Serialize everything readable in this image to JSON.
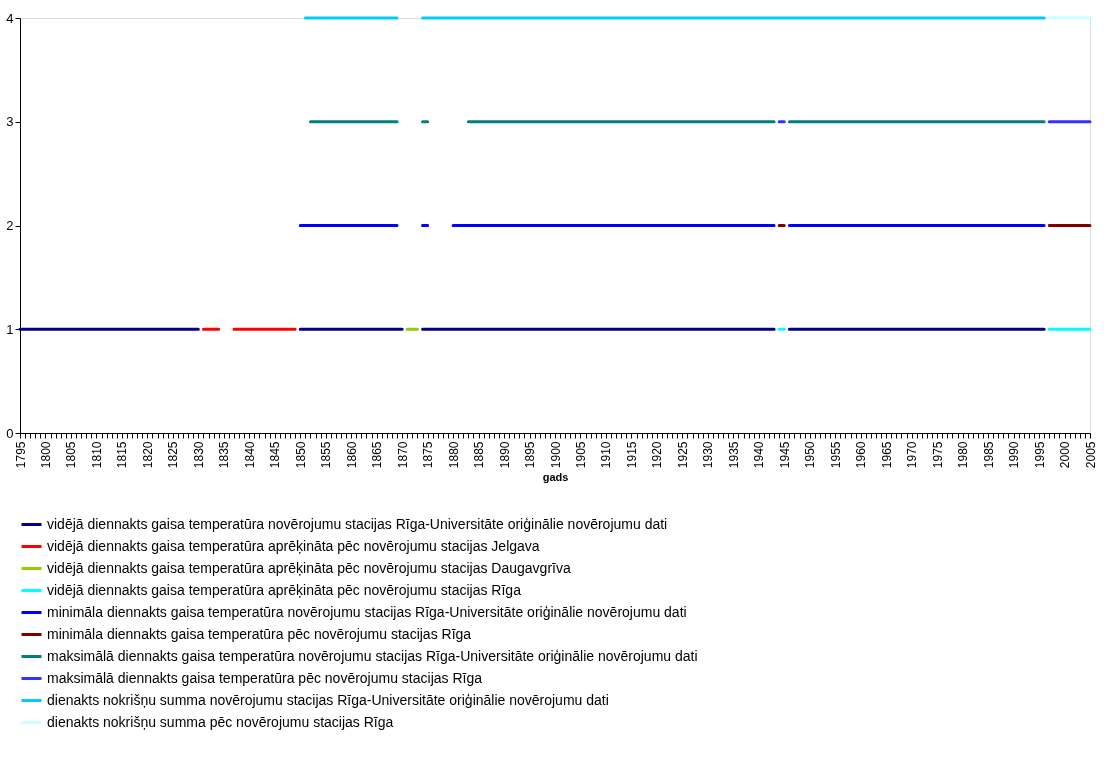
{
  "chart_data": {
    "type": "line",
    "xlabel": "gads",
    "xlim": [
      1795,
      2005
    ],
    "ylim": [
      0,
      4
    ],
    "yticks": [
      0,
      1,
      2,
      3,
      4
    ],
    "grid": false,
    "legend": "bottom",
    "xticks": [
      1795,
      {
        "value": 1796,
        "label": null
      },
      {
        "value": 1797,
        "label": null
      },
      {
        "value": 1798,
        "label": null
      },
      {
        "value": 1799,
        "label": null
      },
      1800,
      {
        "value": 1801,
        "label": null
      },
      {
        "value": 1802,
        "label": null
      },
      {
        "value": 1803,
        "label": null
      },
      {
        "value": 1804,
        "label": null
      },
      1805,
      {
        "value": 1806,
        "label": null
      },
      {
        "value": 1807,
        "label": null
      },
      {
        "value": 1808,
        "label": null
      },
      {
        "value": 1809,
        "label": null
      },
      1810,
      {
        "value": 1811,
        "label": null
      },
      {
        "value": 1812,
        "label": null
      },
      {
        "value": 1813,
        "label": null
      },
      {
        "value": 1814,
        "label": null
      },
      1815,
      {
        "value": 1816,
        "label": null
      },
      {
        "value": 1817,
        "label": null
      },
      {
        "value": 1818,
        "label": null
      },
      {
        "value": 1819,
        "label": null
      },
      1820,
      {
        "value": 1821,
        "label": null
      },
      {
        "value": 1822,
        "label": null
      },
      {
        "value": 1823,
        "label": null
      },
      {
        "value": 1824,
        "label": null
      },
      1825,
      {
        "value": 1826,
        "label": null
      },
      {
        "value": 1827,
        "label": null
      },
      {
        "value": 1828,
        "label": null
      },
      {
        "value": 1829,
        "label": null
      },
      1830,
      {
        "value": 1831,
        "label": null
      },
      {
        "value": 1832,
        "label": null
      },
      {
        "value": 1833,
        "label": null
      },
      {
        "value": 1834,
        "label": null
      },
      1835,
      {
        "value": 1836,
        "label": null
      },
      {
        "value": 1837,
        "label": null
      },
      {
        "value": 1838,
        "label": null
      },
      {
        "value": 1839,
        "label": null
      },
      1840,
      {
        "value": 1841,
        "label": null
      },
      {
        "value": 1842,
        "label": null
      },
      {
        "value": 1843,
        "label": null
      },
      {
        "value": 1844,
        "label": null
      },
      1845,
      {
        "value": 1846,
        "label": null
      },
      {
        "value": 1847,
        "label": null
      },
      {
        "value": 1848,
        "label": null
      },
      {
        "value": 1849,
        "label": null
      },
      1850,
      {
        "value": 1851,
        "label": null
      },
      {
        "value": 1852,
        "label": null
      },
      {
        "value": 1853,
        "label": null
      },
      {
        "value": 1854,
        "label": null
      },
      1855,
      {
        "value": 1856,
        "label": null
      },
      {
        "value": 1857,
        "label": null
      },
      {
        "value": 1858,
        "label": null
      },
      {
        "value": 1859,
        "label": null
      },
      1860,
      {
        "value": 1861,
        "label": null
      },
      {
        "value": 1862,
        "label": null
      },
      {
        "value": 1863,
        "label": null
      },
      {
        "value": 1864,
        "label": null
      },
      1865,
      {
        "value": 1866,
        "label": null
      },
      {
        "value": 1867,
        "label": null
      },
      {
        "value": 1868,
        "label": null
      },
      {
        "value": 1869,
        "label": null
      },
      1870,
      {
        "value": 1871,
        "label": null
      },
      {
        "value": 1872,
        "label": null
      },
      {
        "value": 1873,
        "label": null
      },
      {
        "value": 1874,
        "label": null
      },
      1875,
      {
        "value": 1876,
        "label": null
      },
      {
        "value": 1877,
        "label": null
      },
      {
        "value": 1878,
        "label": null
      },
      {
        "value": 1879,
        "label": null
      },
      1880,
      {
        "value": 1881,
        "label": null
      },
      {
        "value": 1882,
        "label": null
      },
      {
        "value": 1883,
        "label": null
      },
      {
        "value": 1884,
        "label": null
      },
      1885,
      {
        "value": 1886,
        "label": null
      },
      {
        "value": 1887,
        "label": null
      },
      {
        "value": 1888,
        "label": null
      },
      {
        "value": 1889,
        "label": null
      },
      1890,
      {
        "value": 1891,
        "label": null
      },
      {
        "value": 1892,
        "label": null
      },
      {
        "value": 1893,
        "label": null
      },
      {
        "value": 1894,
        "label": null
      },
      1895,
      {
        "value": 1896,
        "label": null
      },
      {
        "value": 1897,
        "label": null
      },
      {
        "value": 1898,
        "label": null
      },
      {
        "value": 1899,
        "label": null
      },
      1900,
      {
        "value": 1901,
        "label": null
      },
      {
        "value": 1902,
        "label": null
      },
      {
        "value": 1903,
        "label": null
      },
      {
        "value": 1904,
        "label": null
      },
      1905,
      {
        "value": 1906,
        "label": null
      },
      {
        "value": 1907,
        "label": null
      },
      {
        "value": 1908,
        "label": null
      },
      {
        "value": 1909,
        "label": null
      },
      1910,
      {
        "value": 1911,
        "label": null
      },
      {
        "value": 1912,
        "label": null
      },
      {
        "value": 1913,
        "label": null
      },
      {
        "value": 1914,
        "label": null
      },
      1915,
      {
        "value": 1916,
        "label": null
      },
      {
        "value": 1917,
        "label": null
      },
      {
        "value": 1918,
        "label": null
      },
      {
        "value": 1919,
        "label": null
      },
      1920,
      {
        "value": 1921,
        "label": null
      },
      {
        "value": 1922,
        "label": null
      },
      {
        "value": 1923,
        "label": null
      },
      {
        "value": 1924,
        "label": null
      },
      1925,
      {
        "value": 1926,
        "label": null
      },
      {
        "value": 1927,
        "label": null
      },
      {
        "value": 1928,
        "label": null
      },
      {
        "value": 1929,
        "label": null
      },
      1930,
      {
        "value": 1931,
        "label": null
      },
      {
        "value": 1932,
        "label": null
      },
      {
        "value": 1933,
        "label": null
      },
      {
        "value": 1934,
        "label": null
      },
      1935,
      {
        "value": 1936,
        "label": null
      },
      {
        "value": 1937,
        "label": null
      },
      {
        "value": 1938,
        "label": null
      },
      {
        "value": 1939,
        "label": null
      },
      1940,
      {
        "value": 1941,
        "label": null
      },
      {
        "value": 1942,
        "label": null
      },
      {
        "value": 1943,
        "label": null
      },
      {
        "value": 1944,
        "label": null
      },
      1945,
      {
        "value": 1946,
        "label": null
      },
      {
        "value": 1947,
        "label": null
      },
      {
        "value": 1948,
        "label": null
      },
      {
        "value": 1949,
        "label": null
      },
      1950,
      {
        "value": 1951,
        "label": null
      },
      {
        "value": 1952,
        "label": null
      },
      {
        "value": 1953,
        "label": null
      },
      {
        "value": 1954,
        "label": null
      },
      1955,
      {
        "value": 1956,
        "label": null
      },
      {
        "value": 1957,
        "label": null
      },
      {
        "value": 1958,
        "label": null
      },
      {
        "value": 1959,
        "label": null
      },
      1960,
      {
        "value": 1961,
        "label": null
      },
      {
        "value": 1962,
        "label": null
      },
      {
        "value": 1963,
        "label": null
      },
      {
        "value": 1964,
        "label": null
      },
      1965,
      {
        "value": 1966,
        "label": null
      },
      {
        "value": 1967,
        "label": null
      },
      {
        "value": 1968,
        "label": null
      },
      {
        "value": 1969,
        "label": null
      },
      1970,
      {
        "value": 1971,
        "label": null
      },
      {
        "value": 1972,
        "label": null
      },
      {
        "value": 1973,
        "label": null
      },
      {
        "value": 1974,
        "label": null
      },
      1975,
      {
        "value": 1976,
        "label": null
      },
      {
        "value": 1977,
        "label": null
      },
      {
        "value": 1978,
        "label": null
      },
      {
        "value": 1979,
        "label": null
      },
      1980,
      {
        "value": 1981,
        "label": null
      },
      {
        "value": 1982,
        "label": null
      },
      {
        "value": 1983,
        "label": null
      },
      {
        "value": 1984,
        "label": null
      },
      1985,
      {
        "value": 1986,
        "label": null
      },
      {
        "value": 1987,
        "label": null
      },
      {
        "value": 1988,
        "label": null
      },
      {
        "value": 1989,
        "label": null
      },
      1990,
      {
        "value": 1991,
        "label": null
      },
      {
        "value": 1992,
        "label": null
      },
      {
        "value": 1993,
        "label": null
      },
      {
        "value": 1994,
        "label": null
      },
      1995,
      {
        "value": 1996,
        "label": null
      },
      {
        "value": 1997,
        "label": null
      },
      {
        "value": 1998,
        "label": null
      },
      {
        "value": 1999,
        "label": null
      },
      2000,
      {
        "value": 2001,
        "label": null
      },
      {
        "value": 2002,
        "label": null
      },
      {
        "value": 2003,
        "label": null
      },
      {
        "value": 2004,
        "label": null
      },
      2005
    ],
    "series": [
      {
        "name": "vidējā diennakts gaisa temperatūra novērojumu stacijas Rīga-Universitāte oriģinālie novērojumu dati",
        "color": "#000080",
        "x": [
          1795,
          1830,
          1831,
          1850,
          1870,
          1871,
          1874,
          1943,
          1944,
          1946,
          1996
        ],
        "values": [
          1,
          1,
          null,
          1,
          1,
          null,
          1,
          1,
          null,
          1,
          1
        ]
      },
      {
        "name": "vidējā diennakts gaisa temperatūra aprēķināta pēc novērojumu stacijas Jelgava",
        "color": "#ff0000",
        "x": [
          1831,
          1834,
          1835,
          1837,
          1849
        ],
        "values": [
          1,
          1,
          null,
          1,
          1
        ]
      },
      {
        "name": "vidējā diennakts gaisa temperatūra aprēķināta pēc novērojumu stacijas Daugavgrīva",
        "color": "#99cc00",
        "x": [
          1871,
          1873
        ],
        "values": [
          1,
          1
        ]
      },
      {
        "name": "vidējā diennakts gaisa temperatūra aprēķināta pēc novērojumu stacijas Rīga",
        "color": "#00ffff",
        "x": [
          1944,
          1945,
          1946,
          1997,
          2005
        ],
        "values": [
          1,
          1,
          null,
          1,
          1
        ]
      },
      {
        "name": "minimāla diennakts gaisa temperatūra novērojumu stacijas Rīga-Universitāte oriģinālie novērojumu dati",
        "color": "#0000ff",
        "x": [
          1850,
          1869,
          1870,
          1874,
          1875,
          1876,
          1880,
          1943,
          1944,
          1946,
          1996
        ],
        "values": [
          2,
          2,
          null,
          2,
          2,
          null,
          2,
          2,
          null,
          2,
          2
        ]
      },
      {
        "name": "minimāla diennakts gaisa temperatūra pēc novērojumu stacijas Rīga",
        "color": "#800000",
        "x": [
          1944,
          1945,
          1946,
          1997,
          2005
        ],
        "values": [
          2,
          2,
          null,
          2,
          2
        ]
      },
      {
        "name": "maksimālā diennakts gaisa temperatūra novērojumu stacijas Rīga-Universitāte oriģinālie novērojumu dati",
        "color": "#008080",
        "x": [
          1852,
          1869,
          1870,
          1874,
          1875,
          1876,
          1883,
          1943,
          1944,
          1946,
          1996
        ],
        "values": [
          3,
          3,
          null,
          3,
          3,
          null,
          3,
          3,
          null,
          3,
          3
        ]
      },
      {
        "name": "maksimālā diennakts gaisa temperatūra pēc novērojumu stacijas Rīga",
        "color": "#3333ff",
        "x": [
          1944,
          1945,
          1946,
          1997,
          2005
        ],
        "values": [
          3,
          3,
          null,
          3,
          3
        ]
      },
      {
        "name": "dienakts nokrišņu summa novērojumu stacijas Rīga-Universitāte oriģinālie novērojumu dati",
        "color": "#00ccff",
        "x": [
          1851,
          1869,
          1870,
          1874,
          1996
        ],
        "values": [
          4,
          4,
          null,
          4,
          4
        ]
      },
      {
        "name": "dienakts nokrišņu summa pēc novērojumu stacijas Rīga",
        "color": "#ccffff",
        "x": [
          1997,
          2005
        ],
        "values": [
          4,
          4
        ]
      }
    ]
  }
}
